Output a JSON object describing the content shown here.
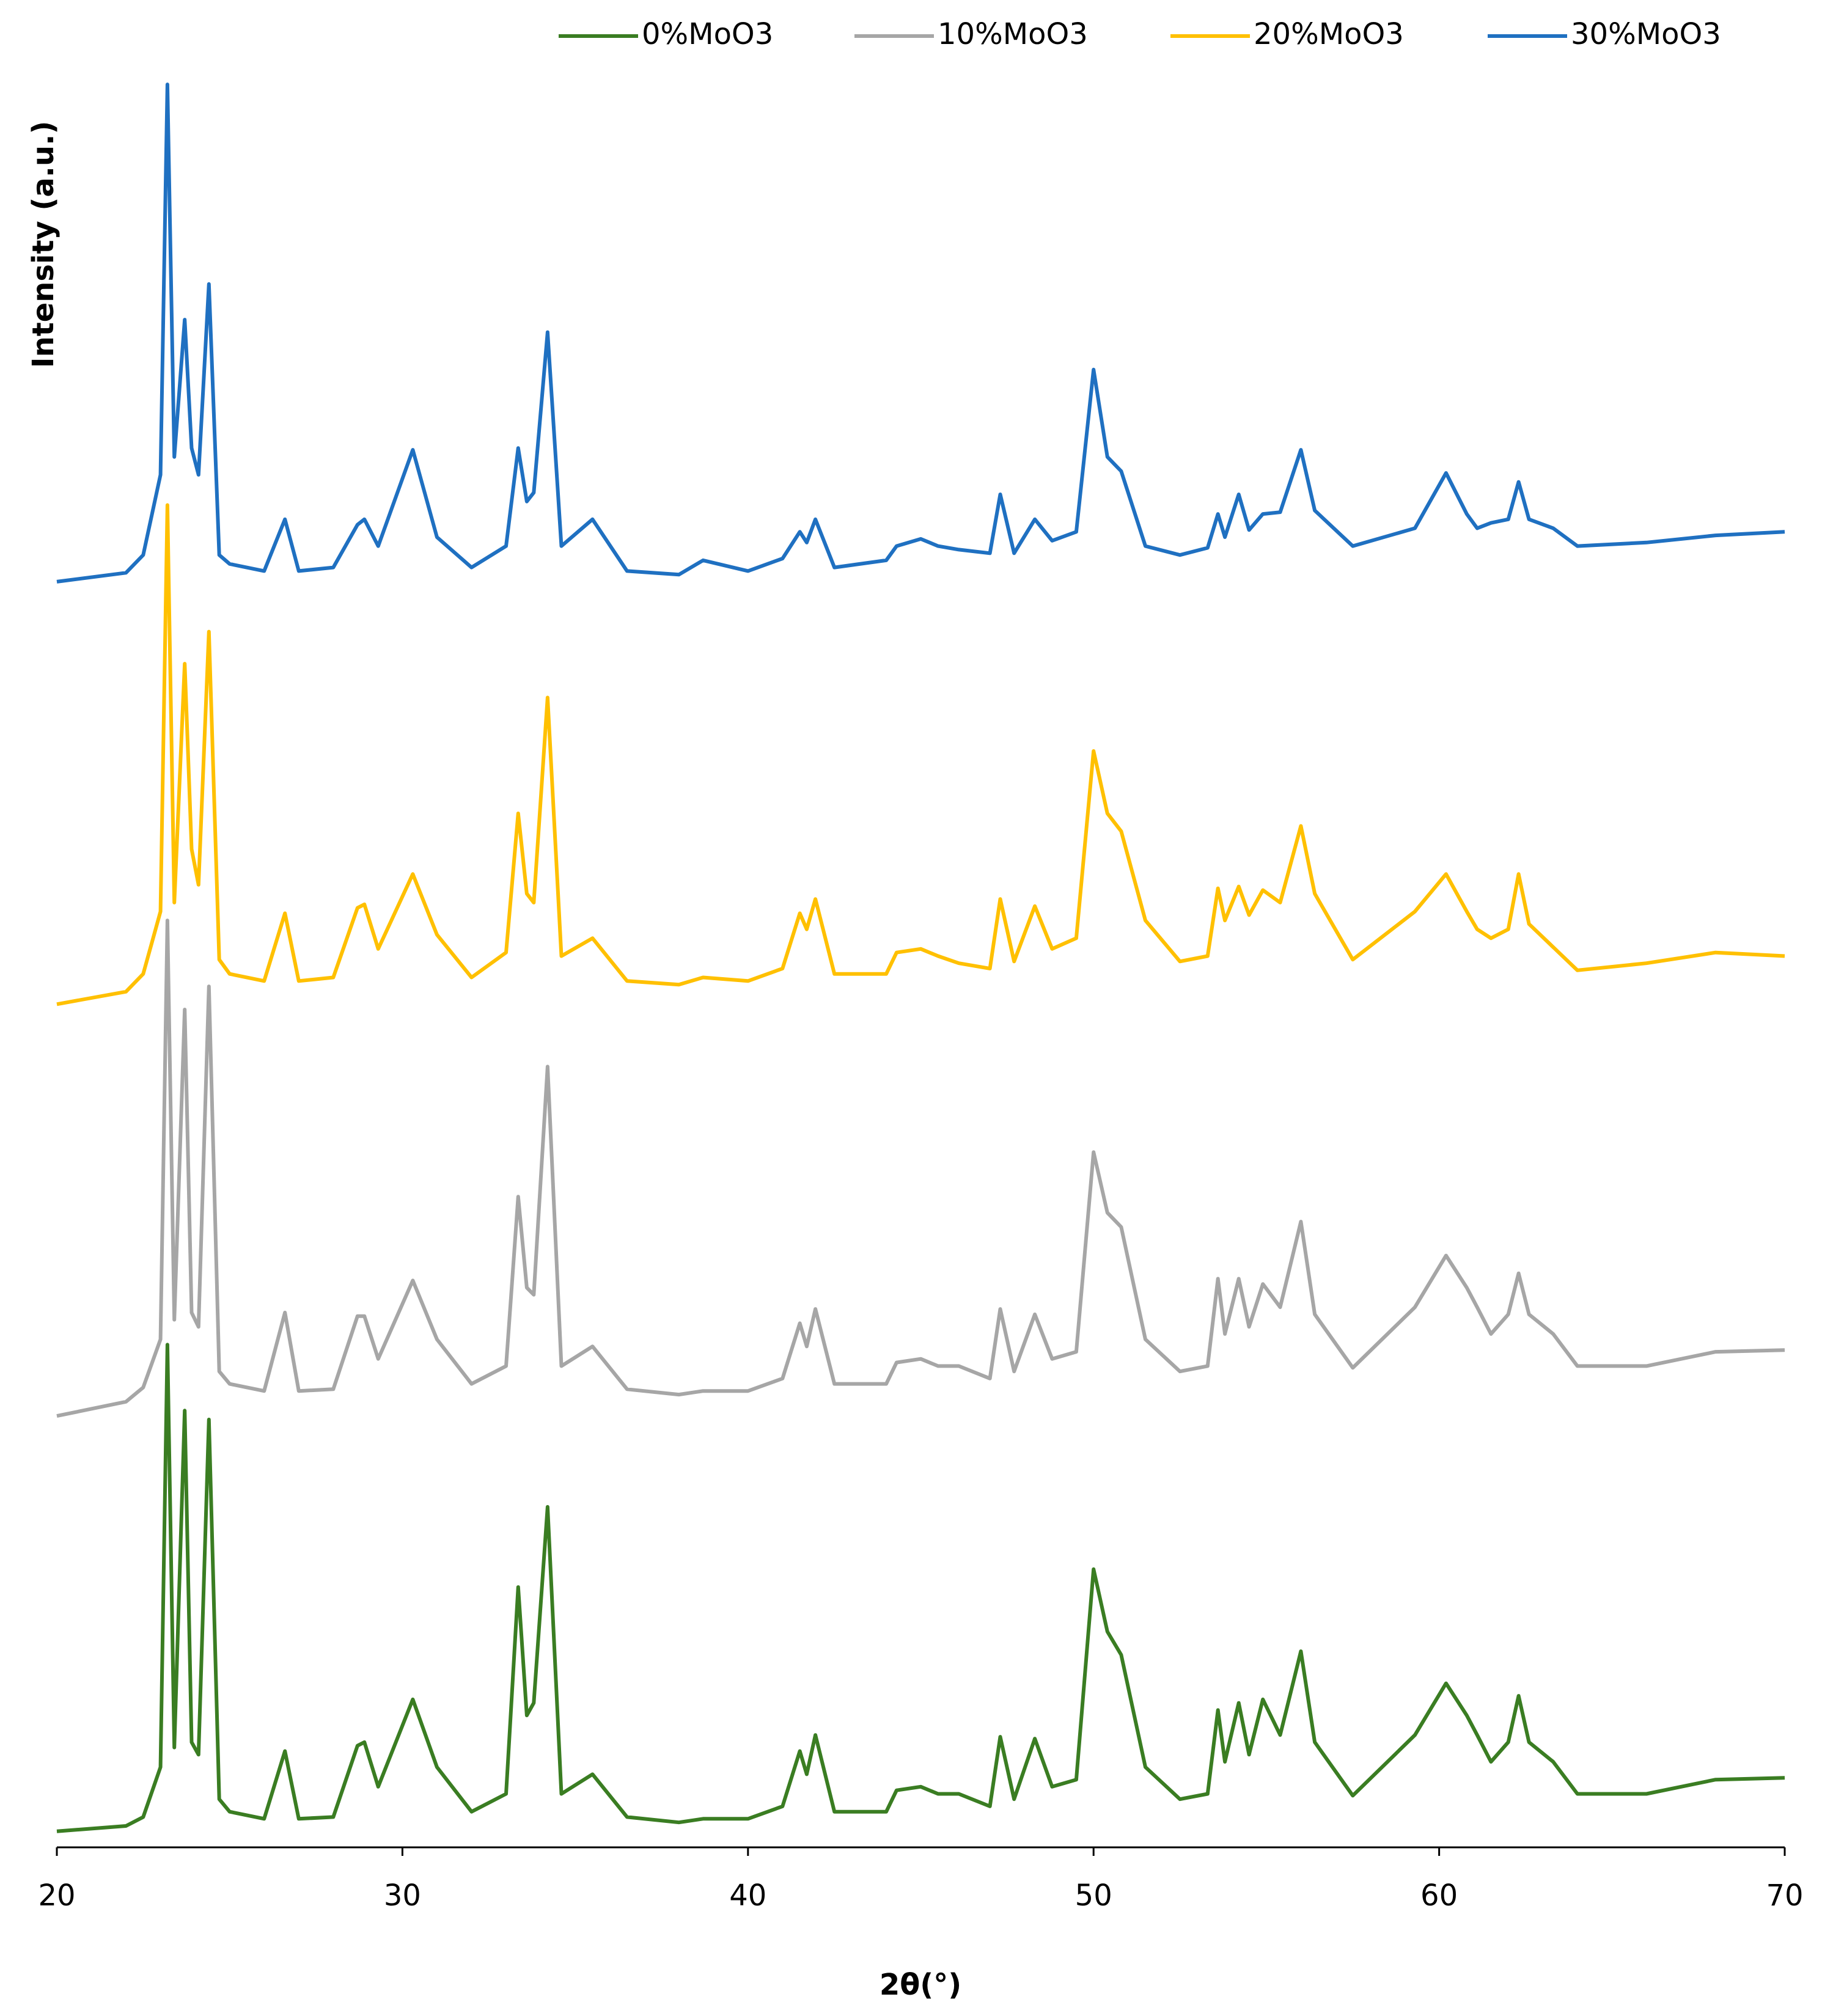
{
  "chart_data": {
    "type": "line",
    "xlabel": "2θ(°)",
    "ylabel": "Intensity (a.u.)",
    "legend": "top",
    "xlim": [
      20,
      70
    ],
    "xticks": [
      20,
      30,
      40,
      50,
      60,
      70
    ],
    "ylim": [
      0,
      100
    ],
    "x": [
      20,
      22,
      22.5,
      23,
      23.2,
      23.4,
      23.7,
      23.9,
      24.1,
      24.4,
      24.7,
      25,
      26,
      26.6,
      27,
      28,
      28.7,
      28.9,
      29.3,
      30.3,
      31,
      32,
      33,
      33.35,
      33.6,
      33.8,
      34.2,
      34.6,
      35.5,
      36.5,
      38,
      38.7,
      40,
      41,
      41.5,
      41.7,
      41.95,
      42.5,
      44,
      44.3,
      45,
      45.5,
      46.1,
      47,
      47.3,
      47.7,
      48.3,
      48.8,
      49.5,
      50,
      50.4,
      50.8,
      51.5,
      52.5,
      53.3,
      53.6,
      53.8,
      54.2,
      54.5,
      54.9,
      55.4,
      56,
      56.4,
      57.5,
      59.3,
      60.2,
      60.8,
      61.1,
      61.5,
      62,
      62.3,
      62.6,
      63.3,
      64,
      66,
      68,
      70
    ],
    "series": [
      {
        "name": "0%MoO3",
        "color": "#3a7d22",
        "values": [
          0.9,
          1.2,
          1.7,
          4.5,
          28.2,
          5.6,
          24.5,
          5.9,
          5.2,
          24.0,
          2.7,
          2.0,
          1.6,
          5.4,
          1.6,
          1.7,
          5.7,
          5.9,
          3.4,
          8.3,
          4.5,
          2.0,
          3.0,
          14.6,
          7.4,
          8.1,
          19.1,
          3.0,
          4.1,
          1.7,
          1.4,
          1.6,
          1.6,
          2.3,
          5.4,
          4.1,
          6.3,
          2.0,
          2.0,
          3.2,
          3.4,
          3.0,
          3.0,
          2.3,
          6.2,
          2.7,
          6.1,
          3.4,
          3.8,
          15.6,
          12.1,
          10.8,
          4.5,
          2.7,
          3.0,
          7.7,
          4.8,
          8.1,
          5.2,
          8.3,
          6.3,
          11.0,
          5.9,
          2.9,
          6.3,
          9.2,
          7.4,
          6.3,
          4.8,
          5.9,
          8.5,
          5.9,
          4.8,
          3.0,
          3.0,
          3.8,
          3.9
        ]
      },
      {
        "name": "10%MoO3",
        "color": "#a6a6a6",
        "values": [
          24.2,
          25.0,
          25.8,
          28.5,
          52.0,
          29.6,
          47.0,
          30.0,
          29.2,
          48.3,
          26.7,
          26.0,
          25.6,
          30.0,
          25.6,
          25.7,
          29.8,
          29.8,
          27.4,
          31.8,
          28.5,
          26.0,
          27.0,
          36.5,
          31.4,
          31.0,
          43.8,
          27.0,
          28.1,
          25.7,
          25.4,
          25.6,
          25.6,
          26.3,
          29.4,
          28.1,
          30.2,
          26.0,
          26.0,
          27.2,
          27.4,
          27.0,
          27.0,
          26.3,
          30.2,
          26.7,
          29.9,
          27.4,
          27.8,
          39.0,
          35.6,
          34.8,
          28.5,
          26.7,
          27.0,
          31.9,
          28.8,
          31.9,
          29.2,
          31.6,
          30.3,
          35.1,
          29.9,
          26.9,
          30.3,
          33.2,
          31.4,
          30.3,
          28.8,
          29.9,
          32.2,
          29.9,
          28.8,
          27.0,
          27.0,
          27.8,
          27.9
        ]
      },
      {
        "name": "20%MoO3",
        "color": "#ffc000",
        "values": [
          47.3,
          48.0,
          49.0,
          52.5,
          75.3,
          53.0,
          66.4,
          56.0,
          54.0,
          68.2,
          49.8,
          49.0,
          48.6,
          52.4,
          48.6,
          48.8,
          52.7,
          52.9,
          50.4,
          54.6,
          51.2,
          48.8,
          50.2,
          58.0,
          53.5,
          53.0,
          64.5,
          50.0,
          51.0,
          48.6,
          48.4,
          48.8,
          48.6,
          49.3,
          52.4,
          51.5,
          53.2,
          49.0,
          49.0,
          50.2,
          50.4,
          50.0,
          49.6,
          49.3,
          53.2,
          49.7,
          52.8,
          50.4,
          51.0,
          61.5,
          58.0,
          57.0,
          52.0,
          49.7,
          50.0,
          53.8,
          52.0,
          53.9,
          52.3,
          53.7,
          53.0,
          57.3,
          53.5,
          49.8,
          52.5,
          54.6,
          52.5,
          51.5,
          51.0,
          51.5,
          54.6,
          51.8,
          50.5,
          49.2,
          49.6,
          50.2,
          50.0
        ]
      },
      {
        "name": "30%MoO3",
        "color": "#1f70c1",
        "values": [
          71.0,
          71.5,
          72.5,
          77,
          98.9,
          78,
          85.7,
          78.5,
          77,
          87.7,
          72.5,
          72.0,
          71.6,
          74.5,
          71.6,
          71.8,
          74.2,
          74.5,
          73,
          78.4,
          73.5,
          71.8,
          73,
          78.5,
          75.5,
          76,
          85.0,
          73,
          74.5,
          71.6,
          71.4,
          72.2,
          71.6,
          72.3,
          73.8,
          73.2,
          74.5,
          71.8,
          72.2,
          73.0,
          73.4,
          73.0,
          72.8,
          72.6,
          75.9,
          72.6,
          74.5,
          73.3,
          73.8,
          82.9,
          78.0,
          77.2,
          73.0,
          72.5,
          72.9,
          74.8,
          73.5,
          75.9,
          73.9,
          74.8,
          74.9,
          78.4,
          75.0,
          73.0,
          74.0,
          77.1,
          74.8,
          74.0,
          74.3,
          74.5,
          76.6,
          74.5,
          74.0,
          73.0,
          73.2,
          73.6,
          73.8
        ]
      }
    ]
  }
}
